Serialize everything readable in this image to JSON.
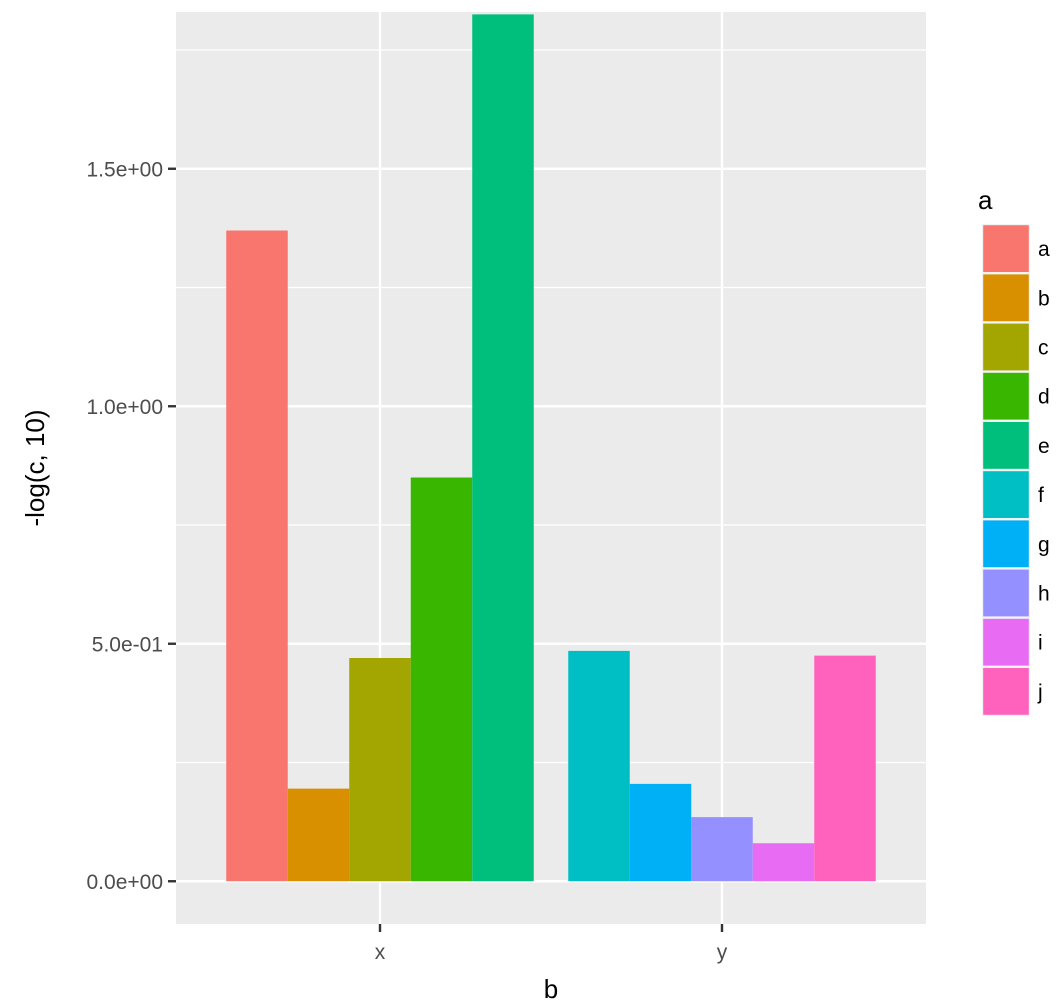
{
  "chart_data": {
    "type": "bar",
    "xlabel": "b",
    "ylabel": "-log(c, 10)",
    "categories": [
      "x",
      "y"
    ],
    "ylim": [
      -0.09,
      1.83
    ],
    "yticks": [
      {
        "value": 0.0,
        "label": "0.0e+00"
      },
      {
        "value": 0.5,
        "label": "5.0e-01"
      },
      {
        "value": 1.0,
        "label": "1.0e+00"
      },
      {
        "value": 1.5,
        "label": "1.5e+00"
      }
    ],
    "y_minor_gridlines": [
      0.25,
      0.75,
      1.25,
      1.75
    ],
    "grid": true,
    "bar_groups": [
      {
        "category": "x",
        "bars": [
          {
            "fill": "a",
            "value": 1.37
          },
          {
            "fill": "b",
            "value": 0.195
          },
          {
            "fill": "c",
            "value": 0.47
          },
          {
            "fill": "d",
            "value": 0.85
          },
          {
            "fill": "e",
            "value": 1.825
          }
        ]
      },
      {
        "category": "y",
        "bars": [
          {
            "fill": "f",
            "value": 0.485
          },
          {
            "fill": "g",
            "value": 0.205
          },
          {
            "fill": "h",
            "value": 0.135
          },
          {
            "fill": "i",
            "value": 0.08
          },
          {
            "fill": "j",
            "value": 0.475
          }
        ]
      }
    ],
    "legend": {
      "title": "a",
      "placement": "right",
      "entries": [
        {
          "label": "a",
          "color": "#F8766D"
        },
        {
          "label": "b",
          "color": "#D89000"
        },
        {
          "label": "c",
          "color": "#A3A500"
        },
        {
          "label": "d",
          "color": "#39B600"
        },
        {
          "label": "e",
          "color": "#00BF7D"
        },
        {
          "label": "f",
          "color": "#00BFC4"
        },
        {
          "label": "g",
          "color": "#00B0F6"
        },
        {
          "label": "h",
          "color": "#9590FF"
        },
        {
          "label": "i",
          "color": "#E76BF3"
        },
        {
          "label": "j",
          "color": "#FF62BC"
        }
      ]
    },
    "colors": {
      "panel_background": "#EBEBEB",
      "grid_line": "#FFFFFF",
      "tick_text": "#4D4D4D",
      "tick_mark": "#333333",
      "title_text": "#000000"
    }
  }
}
